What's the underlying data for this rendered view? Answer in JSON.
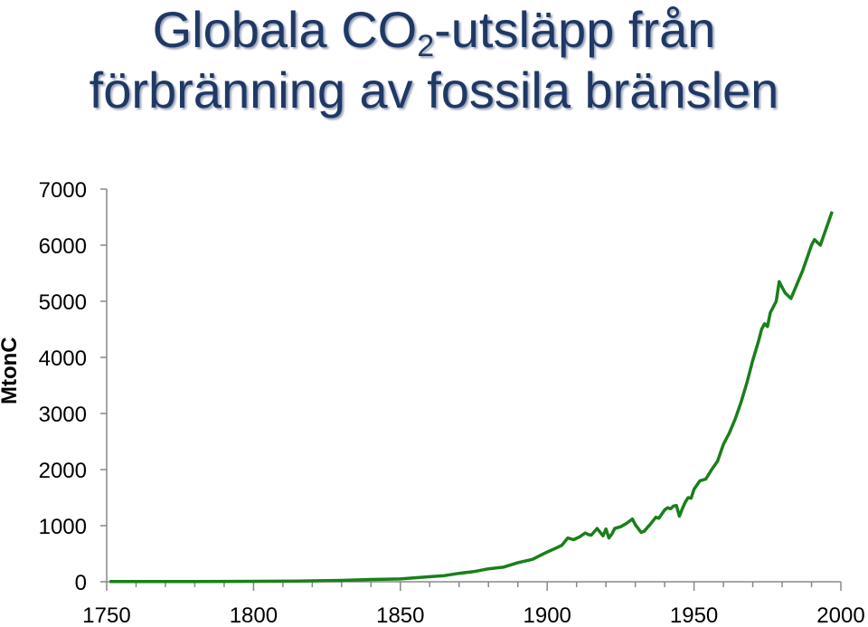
{
  "chart_data": {
    "type": "line",
    "title_line1_pre": "Globala CO",
    "title_sub": "2",
    "title_line1_post": "-utsläpp från",
    "title_line2": "förbränning av fossila bränslen",
    "xlabel": "",
    "ylabel": "MtonC",
    "xlim": [
      1750,
      2000
    ],
    "ylim": [
      0,
      7000
    ],
    "xticks": [
      1750,
      1800,
      1850,
      1900,
      1950,
      2000
    ],
    "yticks": [
      0,
      1000,
      2000,
      3000,
      4000,
      5000,
      6000,
      7000
    ],
    "grid": false,
    "line_color": "#1a7f1a",
    "series": [
      {
        "x": [
          1751,
          1780,
          1800,
          1815,
          1830,
          1840,
          1850,
          1860,
          1865,
          1870,
          1875,
          1880,
          1885,
          1890,
          1895,
          1900,
          1903,
          1905,
          1907,
          1909,
          1911,
          1913,
          1914,
          1915,
          1917,
          1919,
          1920,
          1921,
          1922,
          1923,
          1925,
          1927,
          1929,
          1930,
          1932,
          1933,
          1935,
          1937,
          1938,
          1940,
          1941,
          1942,
          1943,
          1944,
          1945,
          1946,
          1947,
          1948,
          1949,
          1950,
          1952,
          1954,
          1956,
          1958,
          1960,
          1962,
          1964,
          1966,
          1968,
          1970,
          1972,
          1973,
          1974,
          1975,
          1976,
          1977,
          1978,
          1979,
          1980,
          1981,
          1982,
          1983,
          1985,
          1987,
          1989,
          1990,
          1991,
          1992,
          1993,
          1995,
          1997
        ],
        "y": [
          3,
          5,
          8,
          13,
          25,
          40,
          50,
          90,
          110,
          150,
          180,
          230,
          260,
          340,
          400,
          530,
          600,
          650,
          780,
          750,
          800,
          870,
          840,
          830,
          950,
          820,
          940,
          780,
          850,
          950,
          980,
          1040,
          1120,
          1020,
          880,
          900,
          1020,
          1150,
          1130,
          1280,
          1320,
          1300,
          1350,
          1360,
          1170,
          1300,
          1420,
          1500,
          1490,
          1650,
          1800,
          1830,
          2000,
          2150,
          2450,
          2650,
          2900,
          3200,
          3550,
          3950,
          4300,
          4500,
          4600,
          4550,
          4800,
          4900,
          5000,
          5350,
          5250,
          5150,
          5100,
          5050,
          5300,
          5550,
          5850,
          6000,
          6100,
          6050,
          6000,
          6300,
          6600
        ]
      }
    ]
  }
}
